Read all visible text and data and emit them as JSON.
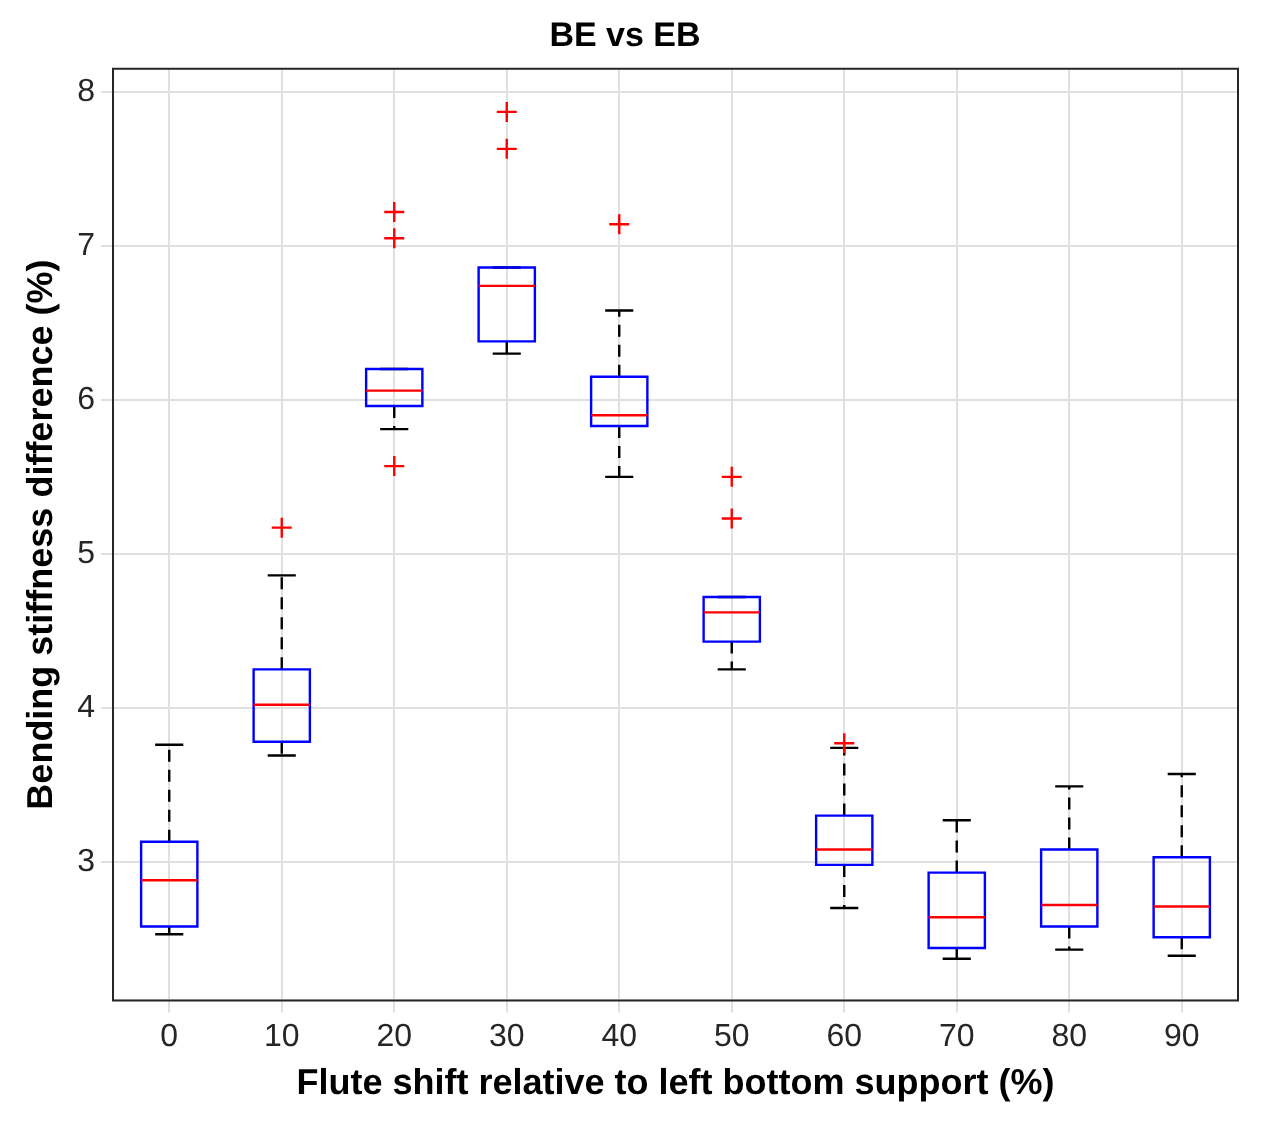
{
  "chart_data": {
    "type": "box",
    "title": "BE vs EB",
    "xlabel": "Flute shift relative to left bottom support (%)",
    "ylabel": "Bending stiffness difference (%)",
    "categories": [
      "0",
      "10",
      "20",
      "30",
      "40",
      "50",
      "60",
      "70",
      "80",
      "90"
    ],
    "color": "#0000ff",
    "boxes": [
      {
        "low": 2.53,
        "q1": 2.58,
        "median": 2.88,
        "q3": 3.13,
        "high": 3.76
      },
      {
        "low": 3.69,
        "q1": 3.78,
        "median": 4.02,
        "q3": 4.25,
        "high": 4.86,
        "outliers": [
          5.17
        ]
      },
      {
        "low": 5.81,
        "q1": 5.96,
        "median": 6.06,
        "q3": 6.2,
        "high": 6.2,
        "outliers": [
          7.22,
          7.05,
          5.57
        ]
      },
      {
        "low": 6.3,
        "q1": 6.38,
        "median": 6.74,
        "q3": 6.86,
        "high": 6.86,
        "outliers": [
          7.87,
          7.63
        ]
      },
      {
        "low": 5.5,
        "q1": 5.83,
        "median": 5.9,
        "q3": 6.15,
        "high": 6.58,
        "outliers": [
          7.14
        ]
      },
      {
        "low": 4.25,
        "q1": 4.43,
        "median": 4.62,
        "q3": 4.72,
        "high": 4.72,
        "outliers": [
          5.5,
          5.23
        ]
      },
      {
        "low": 2.7,
        "q1": 2.98,
        "median": 3.08,
        "q3": 3.3,
        "high": 3.74,
        "outliers": [
          3.77
        ]
      },
      {
        "low": 2.37,
        "q1": 2.44,
        "median": 2.64,
        "q3": 2.93,
        "high": 3.27
      },
      {
        "low": 2.43,
        "q1": 2.58,
        "median": 2.72,
        "q3": 3.08,
        "high": 3.49
      },
      {
        "low": 2.39,
        "q1": 2.51,
        "median": 2.71,
        "q3": 3.03,
        "high": 3.57
      }
    ],
    "ylim": [
      2.1,
      8.15
    ],
    "yticks": [
      3,
      4,
      5,
      6,
      7,
      8
    ],
    "grid": true,
    "legend": false
  }
}
